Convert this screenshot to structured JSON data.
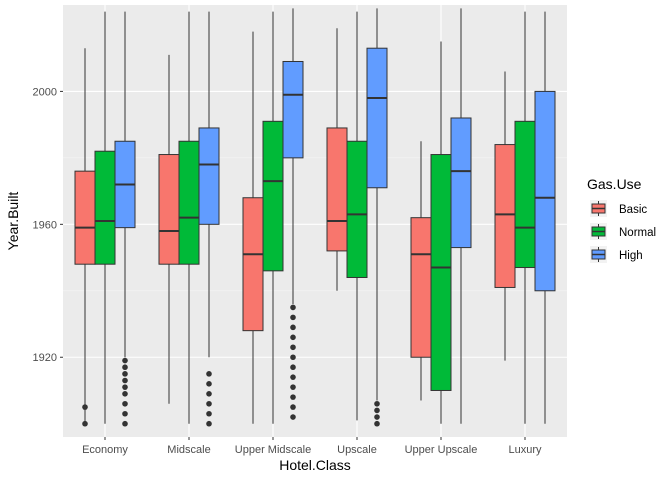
{
  "chart_data": {
    "type": "boxplot",
    "xlabel": "Hotel.Class",
    "ylabel": "Year.Built",
    "ylim": [
      1896,
      2026
    ],
    "yticks": [
      1920,
      1960,
      2000
    ],
    "grid": true,
    "legend": {
      "title": "Gas.Use",
      "position": "right"
    },
    "categories": [
      "Economy",
      "Midscale",
      "Upper Midscale",
      "Upscale",
      "Upper Upscale",
      "Luxury"
    ],
    "series": [
      {
        "name": "Basic",
        "color": "#F8766D",
        "boxes": [
          {
            "whisker_low": 1900,
            "q1": 1948,
            "median": 1959,
            "q3": 1976,
            "whisker_high": 2013,
            "outliers": [
              1900,
              1905
            ]
          },
          {
            "whisker_low": 1906,
            "q1": 1948,
            "median": 1958,
            "q3": 1981,
            "whisker_high": 2011,
            "outliers": []
          },
          {
            "whisker_low": 1900,
            "q1": 1928,
            "median": 1951,
            "q3": 1968,
            "whisker_high": 2018,
            "outliers": []
          },
          {
            "whisker_low": 1940,
            "q1": 1952,
            "median": 1961,
            "q3": 1989,
            "whisker_high": 2019,
            "outliers": []
          },
          {
            "whisker_low": 1907,
            "q1": 1920,
            "median": 1951,
            "q3": 1962,
            "whisker_high": 1985,
            "outliers": []
          },
          {
            "whisker_low": 1919,
            "q1": 1941,
            "median": 1963,
            "q3": 1984,
            "whisker_high": 2006,
            "outliers": []
          }
        ]
      },
      {
        "name": "Normal",
        "color": "#00BA38",
        "boxes": [
          {
            "whisker_low": 1900,
            "q1": 1948,
            "median": 1961,
            "q3": 1982,
            "whisker_high": 2024,
            "outliers": []
          },
          {
            "whisker_low": 1900,
            "q1": 1948,
            "median": 1962,
            "q3": 1985,
            "whisker_high": 2024,
            "outliers": []
          },
          {
            "whisker_low": 1900,
            "q1": 1946,
            "median": 1973,
            "q3": 1991,
            "whisker_high": 2024,
            "outliers": []
          },
          {
            "whisker_low": 1901,
            "q1": 1944,
            "median": 1963,
            "q3": 1985,
            "whisker_high": 2024,
            "outliers": []
          },
          {
            "whisker_low": 1900,
            "q1": 1910,
            "median": 1947,
            "q3": 1981,
            "whisker_high": 2015,
            "outliers": []
          },
          {
            "whisker_low": 1900,
            "q1": 1947,
            "median": 1959,
            "q3": 1991,
            "whisker_high": 2024,
            "outliers": []
          }
        ]
      },
      {
        "name": "High",
        "color": "#619CFF",
        "boxes": [
          {
            "whisker_low": 1920,
            "q1": 1959,
            "median": 1972,
            "q3": 1985,
            "whisker_high": 2024,
            "outliers": [
              1900,
              1903,
              1906,
              1909,
              1911,
              1913,
              1915,
              1917,
              1919
            ]
          },
          {
            "whisker_low": 1920,
            "q1": 1960,
            "median": 1978,
            "q3": 1989,
            "whisker_high": 2024,
            "outliers": [
              1900,
              1903,
              1906,
              1909,
              1912,
              1915
            ]
          },
          {
            "whisker_low": 1936,
            "q1": 1980,
            "median": 1999,
            "q3": 2009,
            "whisker_high": 2025,
            "outliers": [
              1902,
              1905,
              1908,
              1911,
              1914,
              1917,
              1920,
              1923,
              1926,
              1929,
              1932,
              1935
            ]
          },
          {
            "whisker_low": 1907,
            "q1": 1971,
            "median": 1998,
            "q3": 2013,
            "whisker_high": 2025,
            "outliers": [
              1900,
              1902,
              1904,
              1906
            ]
          },
          {
            "whisker_low": 1900,
            "q1": 1953,
            "median": 1976,
            "q3": 1992,
            "whisker_high": 2025,
            "outliers": []
          },
          {
            "whisker_low": 1900,
            "q1": 1940,
            "median": 1968,
            "q3": 2000,
            "whisker_high": 2024,
            "outliers": []
          }
        ]
      }
    ]
  }
}
